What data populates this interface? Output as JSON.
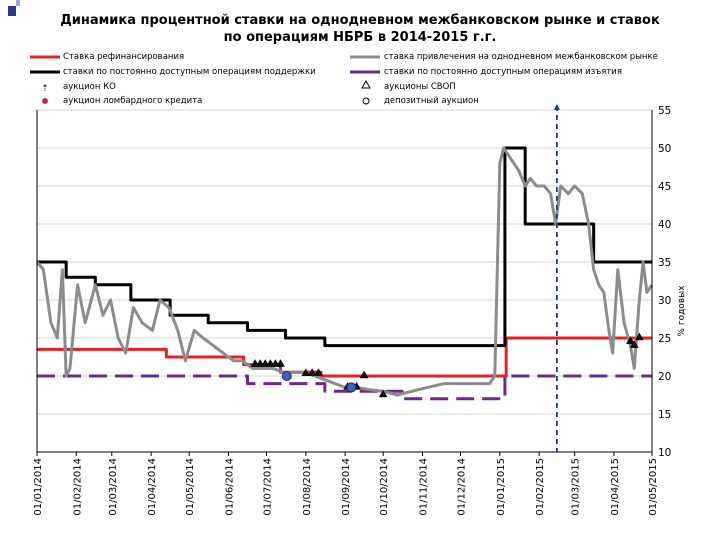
{
  "title_line1": "Динамика процентной ставки на однодневном межбанковском рынке и ставок",
  "title_line2": "по операциям НБРБ в 2014-2015 г.г.",
  "legend": {
    "refinancing": "Ставка рефинансирования",
    "interbank": "ставка привлечения на однодневном межбанковском рынке",
    "support": "ставки по постоянно доступным операциям поддержки",
    "withdrawal": "ставки по постоянно доступным операциям изъятия",
    "auction_ko": "аукцион КО",
    "swap": "аукционы СВОП",
    "lombard": "аукцион ломбардного кредита",
    "deposit": "депозитный аукцион"
  },
  "colors": {
    "refinancing": "#e8211e",
    "interbank": "#8c8c8c",
    "support": "#000000",
    "withdrawal": "#6a2a8c",
    "lombard_marker": "#3a62c8",
    "cutoff": "#1f3a8a"
  },
  "chart_data": {
    "type": "line",
    "title": "Динамика процентной ставки на однодневном межбанковском рынке и ставок по операциям НБРБ в 2014-2015 г.г.",
    "ylabel": "% годовых",
    "ylim": [
      10,
      55
    ],
    "yticks": [
      10,
      15,
      20,
      25,
      30,
      35,
      40,
      45,
      50,
      55
    ],
    "xlim": [
      "01/01/2014",
      "01/05/2015"
    ],
    "xticks": [
      "01/01/2014",
      "01/02/2014",
      "01/03/2014",
      "01/04/2014",
      "01/05/2014",
      "01/06/2014",
      "01/07/2014",
      "01/08/2014",
      "01/09/2014",
      "01/10/2014",
      "01/11/2014",
      "01/12/2014",
      "01/01/2015",
      "01/02/2015",
      "01/03/2015",
      "01/04/2015",
      "01/05/2015"
    ],
    "series": [
      {
        "name": "Ставка рефинансирования",
        "style": "step",
        "points": [
          [
            "01/01/2014",
            23.5
          ],
          [
            "13/04/2014",
            22.5
          ],
          [
            "13/06/2014",
            21.5
          ],
          [
            "12/07/2014",
            20.5
          ],
          [
            "13/08/2014",
            20
          ],
          [
            "06/01/2015",
            25
          ],
          [
            "01/05/2015",
            25
          ]
        ]
      },
      {
        "name": "ставки по постоянно доступным операциям поддержки",
        "style": "step",
        "points": [
          [
            "01/01/2014",
            35
          ],
          [
            "24/01/2014",
            33
          ],
          [
            "16/02/2014",
            32
          ],
          [
            "16/03/2014",
            30
          ],
          [
            "16/04/2014",
            28
          ],
          [
            "16/05/2014",
            27
          ],
          [
            "16/06/2014",
            26
          ],
          [
            "16/07/2014",
            25
          ],
          [
            "16/08/2014",
            24
          ],
          [
            "05/01/2015",
            50
          ],
          [
            "21/01/2015",
            40
          ],
          [
            "16/03/2015",
            35
          ],
          [
            "01/05/2015",
            35
          ]
        ]
      },
      {
        "name": "ставки по постоянно доступным операциям изъятия",
        "style": "dashed-step",
        "points": [
          [
            "01/01/2014",
            20
          ],
          [
            "16/06/2014",
            19
          ],
          [
            "16/08/2014",
            18
          ],
          [
            "16/10/2014",
            17
          ],
          [
            "01/01/2015",
            17
          ],
          [
            "05/01/2015",
            20
          ],
          [
            "01/05/2015",
            20
          ]
        ]
      },
      {
        "name": "ставка привлечения на однодневном межбанковском рынке",
        "style": "line",
        "points": [
          [
            "01/01/2014",
            35
          ],
          [
            "06/01/2014",
            34
          ],
          [
            "12/01/2014",
            27
          ],
          [
            "17/01/2014",
            25
          ],
          [
            "21/01/2014",
            34
          ],
          [
            "24/01/2014",
            20
          ],
          [
            "27/01/2014",
            21
          ],
          [
            "02/02/2014",
            32
          ],
          [
            "08/02/2014",
            27
          ],
          [
            "16/02/2014",
            32
          ],
          [
            "22/02/2014",
            28
          ],
          [
            "28/02/2014",
            30
          ],
          [
            "06/03/2014",
            25
          ],
          [
            "12/03/2014",
            23
          ],
          [
            "18/03/2014",
            29
          ],
          [
            "25/03/2014",
            27
          ],
          [
            "02/04/2014",
            26
          ],
          [
            "08/04/2014",
            30
          ],
          [
            "15/04/2014",
            29
          ],
          [
            "22/04/2014",
            26
          ],
          [
            "28/04/2014",
            22
          ],
          [
            "05/05/2014",
            26
          ],
          [
            "12/05/2014",
            25
          ],
          [
            "20/05/2014",
            24
          ],
          [
            "28/05/2014",
            23
          ],
          [
            "05/06/2014",
            22
          ],
          [
            "12/06/2014",
            22
          ],
          [
            "20/06/2014",
            21
          ],
          [
            "28/06/2014",
            21
          ],
          [
            "06/07/2014",
            21
          ],
          [
            "14/07/2014",
            20.5
          ],
          [
            "22/07/2014",
            20.5
          ],
          [
            "30/07/2014",
            20.5
          ],
          [
            "08/08/2014",
            20
          ],
          [
            "16/08/2014",
            19.5
          ],
          [
            "24/08/2014",
            19
          ],
          [
            "01/09/2014",
            18.5
          ],
          [
            "10/09/2014",
            18.5
          ],
          [
            "20/09/2014",
            18.2
          ],
          [
            "01/10/2014",
            18
          ],
          [
            "12/10/2014",
            17.5
          ],
          [
            "24/10/2014",
            18
          ],
          [
            "05/11/2014",
            18.5
          ],
          [
            "18/11/2014",
            19
          ],
          [
            "02/12/2014",
            19
          ],
          [
            "15/12/2014",
            19
          ],
          [
            "24/12/2014",
            19
          ],
          [
            "28/12/2014",
            20
          ],
          [
            "01/01/2015",
            48
          ],
          [
            "04/01/2015",
            50
          ],
          [
            "08/01/2015",
            49
          ],
          [
            "12/01/2015",
            48
          ],
          [
            "16/01/2015",
            47
          ],
          [
            "21/01/2015",
            45
          ],
          [
            "25/01/2015",
            46
          ],
          [
            "30/01/2015",
            45
          ],
          [
            "05/02/2015",
            45
          ],
          [
            "10/02/2015",
            44
          ],
          [
            "14/02/2015",
            40
          ],
          [
            "18/02/2015",
            45
          ],
          [
            "24/02/2015",
            44
          ],
          [
            "01/03/2015",
            45
          ],
          [
            "07/03/2015",
            44
          ],
          [
            "12/03/2015",
            40
          ],
          [
            "16/03/2015",
            34
          ],
          [
            "20/03/2015",
            32
          ],
          [
            "24/03/2015",
            31
          ],
          [
            "28/03/2015",
            26
          ],
          [
            "31/03/2015",
            23
          ],
          [
            "04/04/2015",
            34
          ],
          [
            "09/04/2015",
            27
          ],
          [
            "14/04/2015",
            24
          ],
          [
            "17/04/2015",
            21
          ],
          [
            "21/04/2015",
            30
          ],
          [
            "24/04/2015",
            35
          ],
          [
            "27/04/2015",
            31
          ],
          [
            "01/05/2015",
            32
          ]
        ]
      }
    ],
    "markers": [
      {
        "name": "аукционы СВОП",
        "shape": "triangle",
        "points": [
          [
            "22/06/2014",
            21.5
          ],
          [
            "26/06/2014",
            21.5
          ],
          [
            "30/06/2014",
            21.5
          ],
          [
            "04/07/2014",
            21.5
          ],
          [
            "08/07/2014",
            21.5
          ],
          [
            "12/07/2014",
            21.5
          ],
          [
            "01/08/2014",
            20.3
          ],
          [
            "06/08/2014",
            20.3
          ],
          [
            "11/08/2014",
            20.3
          ],
          [
            "03/09/2014",
            18.5
          ],
          [
            "10/09/2014",
            18.5
          ],
          [
            "16/09/2014",
            20
          ],
          [
            "01/10/2014",
            17.5
          ],
          [
            "14/04/2015",
            24.5
          ],
          [
            "17/04/2015",
            24
          ],
          [
            "21/04/2015",
            25
          ]
        ]
      },
      {
        "name": "аукцион ломбардного кредита",
        "shape": "circle",
        "points": [
          [
            "17/07/2014",
            20
          ],
          [
            "06/09/2014",
            18.5
          ]
        ]
      }
    ],
    "vertical_line": {
      "x": "15/02/2015",
      "style": "dashed"
    }
  }
}
